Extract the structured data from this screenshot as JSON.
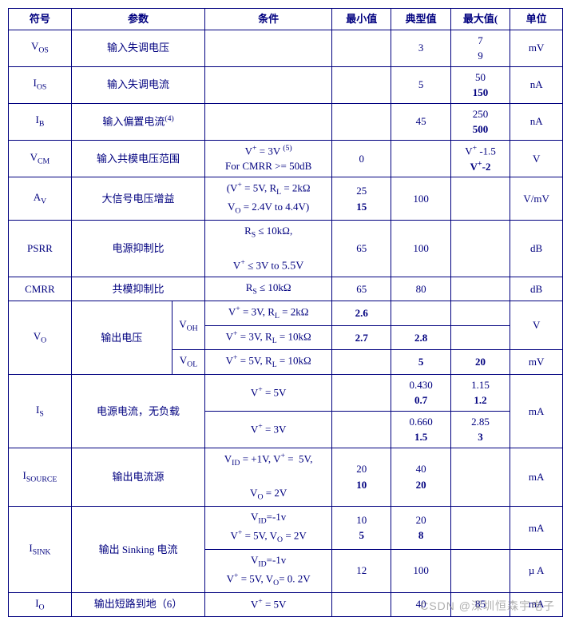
{
  "header": {
    "symbol": "符号",
    "param": "参数",
    "cond": "条件",
    "min": "最小值",
    "typ": "典型值",
    "max": "最大值(",
    "unit": "单位"
  },
  "rows": {
    "vos": {
      "sym": "V<sub>OS</sub>",
      "param": "输入失调电压",
      "cond": "",
      "min": "",
      "typ": "3",
      "max": "7<br>9",
      "unit": "mV"
    },
    "ios": {
      "sym": "I<sub>OS</sub>",
      "param": "输入失调电流",
      "cond": "",
      "min": "",
      "typ": "5",
      "max": "50<br><b>150</b>",
      "unit": "nA"
    },
    "ib": {
      "sym": "I<sub>B</sub>",
      "param": "输入偏置电流<sup>(4)</sup>",
      "cond": "",
      "min": "",
      "typ": "45",
      "max": "250<br><b>500</b>",
      "unit": "nA"
    },
    "vcm": {
      "sym": "V<sub>CM</sub>",
      "param": "输入共模电压范围",
      "cond": "V<sup>+</sup> = 3V <sup>(5)</sup><br>For CMRR &gt;= 50dB",
      "min": "0",
      "typ": "",
      "max": "V<sup>+</sup> -1.5<br><b>V<sup>+</sup>-2</b>",
      "unit": "V"
    },
    "av": {
      "sym": "A<sub>V</sub>",
      "param": "大信号电压增益",
      "cond": "(V<sup>+</sup> = 5V, R<sub>L</sub> = 2kΩ<br>V<sub>O</sub> = 2.4V to 4.4V)",
      "min": "25<br><b>15</b>",
      "typ": "100",
      "max": "",
      "unit": "V/mV"
    },
    "psrr": {
      "sym": "PSRR",
      "param": "电源抑制比",
      "cond": "R<sub>S</sub> ≤ 10kΩ,<br><br>V<sup>+</sup> ≤ 3V to <span style='font-size:14px'>5.5V</span>",
      "min": "65",
      "typ": "100",
      "max": "",
      "unit": "dB"
    },
    "cmrr": {
      "sym": "CMRR",
      "param": "共模抑制比",
      "cond": "R<sub>S</sub> ≤ 10kΩ",
      "min": "65",
      "typ": "80",
      "max": "",
      "unit": "dB"
    },
    "vo_sym": "V<sub>O</sub>",
    "vo_param": "输出电压",
    "voh": "V<sub>OH</sub>",
    "vol": "V<sub>OL</sub>",
    "vo1": {
      "cond": "V<sup>+</sup> = 3V, R<sub>L</sub> = 2kΩ",
      "min": "<b>2.6</b>",
      "typ": "",
      "max": "",
      "unit": "V"
    },
    "vo2": {
      "cond": "V<sup>+</sup> = 3V, R<sub>L</sub> = 10kΩ",
      "min": "<b>2.7</b>",
      "typ": "<b>2.8</b>",
      "max": ""
    },
    "vo3": {
      "cond": "V<sup>+</sup> = 5V, R<sub>L</sub> = 10kΩ",
      "min": "",
      "typ": "<b>5</b>",
      "max": "<b>20</b>",
      "unit": "mV"
    },
    "is_sym": "I<sub>S</sub>",
    "is_param": "电源电流，无负载",
    "is1": {
      "cond": "V<sup>+</sup> = 5V",
      "min": "",
      "typ": "0.430<br><b>0.7</b>",
      "max": "1.15<br><b>1.2</b>",
      "unit": "mA"
    },
    "is2": {
      "cond": "V<sup>+</sup> = 3V",
      "min": "",
      "typ": "0.660<br><b>1.5</b>",
      "max": "2.85<br><b>3</b>"
    },
    "isource": {
      "sym": "I<sub>SOURCE</sub>",
      "param": "输出电流源",
      "cond": "V<sub>ID</sub> = +1V, V<sup>+</sup> =&nbsp; 5V,<br><br>V<sub>O</sub> = 2V",
      "min": "20<br><b>10</b>",
      "typ": "40<br><b>20</b>",
      "max": "",
      "unit": "mA"
    },
    "isink_sym": "I<sub>SINK</sub>",
    "isink_param": "输出 Sinking 电流",
    "isink1": {
      "cond": "V<sub>ID</sub>=-1v<br>V<sup>+</sup> = 5V, V<sub>O</sub> = 2V",
      "min": "10<br><b>5</b>",
      "typ": "20<br><b>8</b>",
      "max": "",
      "unit": "mA"
    },
    "isink2": {
      "cond": "V<sub>ID</sub>=-1v<br>V<sup>+</sup> = 5V, V<sub>O</sub>= 0. 2V",
      "min": "12",
      "typ": "100",
      "max": "",
      "unit": "µ A"
    },
    "io": {
      "sym": "I<sub>O</sub>",
      "param": "输出短路到地（6）",
      "cond": "V<sup>+</sup> = 5V",
      "min": "",
      "typ": "40",
      "max": "85",
      "unit": "mA"
    }
  },
  "watermark": "CSDN @深圳恒森宇电子"
}
